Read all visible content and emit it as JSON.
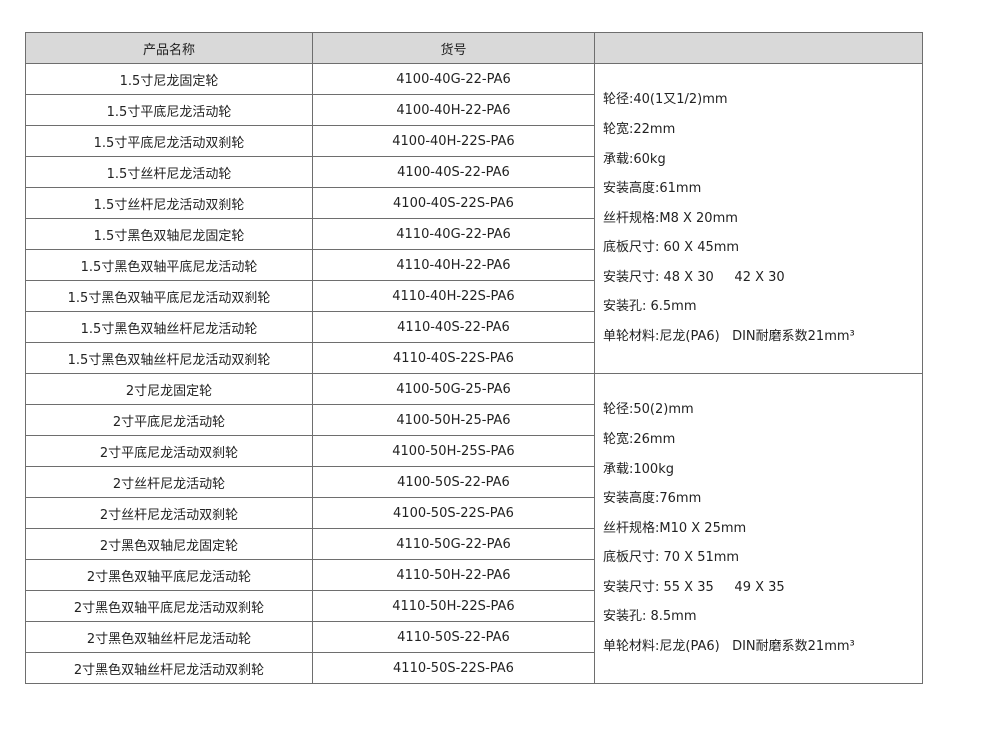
{
  "header": {
    "name": "产品名称",
    "code": "货号",
    "spec": ""
  },
  "groups": [
    {
      "rows": [
        {
          "name": "1.5寸尼龙固定轮",
          "code": "4100-40G-22-PA6"
        },
        {
          "name": "1.5寸平底尼龙活动轮",
          "code": "4100-40H-22-PA6"
        },
        {
          "name": "1.5寸平底尼龙活动双刹轮",
          "code": "4100-40H-22S-PA6"
        },
        {
          "name": "1.5寸丝杆尼龙活动轮",
          "code": "4100-40S-22-PA6"
        },
        {
          "name": "1.5寸丝杆尼龙活动双刹轮",
          "code": "4100-40S-22S-PA6"
        },
        {
          "name": "1.5寸黑色双轴尼龙固定轮",
          "code": "4110-40G-22-PA6"
        },
        {
          "name": "1.5寸黑色双轴平底尼龙活动轮",
          "code": "4110-40H-22-PA6"
        },
        {
          "name": "1.5寸黑色双轴平底尼龙活动双刹轮",
          "code": "4110-40H-22S-PA6"
        },
        {
          "name": "1.5寸黑色双轴丝杆尼龙活动轮",
          "code": "4110-40S-22-PA6"
        },
        {
          "name": "1.5寸黑色双轴丝杆尼龙活动双刹轮",
          "code": "4110-40S-22S-PA6"
        }
      ],
      "spec": [
        "轮径:40(1又1/2)mm",
        "轮宽:22mm",
        "承载:60kg",
        "安装高度:61mm",
        "丝杆规格:M8 X 20mm",
        "底板尺寸: 60 X 45mm",
        "安装尺寸: 48 X 30     42 X 30",
        "安装孔: 6.5mm",
        "单轮材料:尼龙(PA6)   DIN耐磨系数21mm³"
      ]
    },
    {
      "rows": [
        {
          "name": "2寸尼龙固定轮",
          "code": "4100-50G-25-PA6"
        },
        {
          "name": "2寸平底尼龙活动轮",
          "code": "4100-50H-25-PA6"
        },
        {
          "name": "2寸平底尼龙活动双刹轮",
          "code": "4100-50H-25S-PA6"
        },
        {
          "name": "2寸丝杆尼龙活动轮",
          "code": "4100-50S-22-PA6"
        },
        {
          "name": "2寸丝杆尼龙活动双刹轮",
          "code": "4100-50S-22S-PA6"
        },
        {
          "name": "2寸黑色双轴尼龙固定轮",
          "code": "4110-50G-22-PA6"
        },
        {
          "name": "2寸黑色双轴平底尼龙活动轮",
          "code": "4110-50H-22-PA6"
        },
        {
          "name": "2寸黑色双轴平底尼龙活动双刹轮",
          "code": "4110-50H-22S-PA6"
        },
        {
          "name": "2寸黑色双轴丝杆尼龙活动轮",
          "code": "4110-50S-22-PA6"
        },
        {
          "name": "2寸黑色双轴丝杆尼龙活动双刹轮",
          "code": "4110-50S-22S-PA6"
        }
      ],
      "spec": [
        "轮径:50(2)mm",
        "轮宽:26mm",
        "承载:100kg",
        "安装高度:76mm",
        "丝杆规格:M10 X 25mm",
        "底板尺寸: 70 X 51mm",
        "安装尺寸: 55 X 35     49 X 35",
        "安装孔: 8.5mm",
        "单轮材料:尼龙(PA6)   DIN耐磨系数21mm³"
      ]
    }
  ]
}
